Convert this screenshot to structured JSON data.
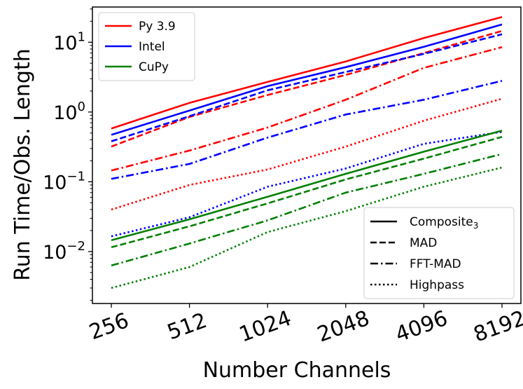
{
  "chart_data": {
    "type": "line",
    "title": "",
    "xlabel": "Number Channels",
    "ylabel": "Run Time/Obs. Length",
    "xscale": "log2",
    "yscale": "log10",
    "x": [
      256,
      512,
      1024,
      2048,
      4096,
      8192
    ],
    "x_tick_labels": [
      "256",
      "512",
      "1024",
      "2048",
      "4096",
      "8192"
    ],
    "y_tick_labels": [
      {
        "value": 0.01,
        "base": "10",
        "exp": "−2"
      },
      {
        "value": 0.1,
        "base": "10",
        "exp": "−1"
      },
      {
        "value": 1,
        "base": "10",
        "exp": "0"
      },
      {
        "value": 10,
        "base": "10",
        "exp": "1"
      }
    ],
    "ylim": [
      0.0018,
      32
    ],
    "implementations": [
      {
        "name": "Py 3.9",
        "color": "#ff0000"
      },
      {
        "name": "Intel",
        "color": "#0000ff"
      },
      {
        "name": "CuPy",
        "color": "#008000"
      }
    ],
    "methods": [
      {
        "name": "Composite",
        "subscript": "3",
        "dash": "solid"
      },
      {
        "name": "MAD",
        "subscript": "",
        "dash": "dashed"
      },
      {
        "name": "FFT-MAD",
        "subscript": "",
        "dash": "dashdot"
      },
      {
        "name": "Highpass",
        "subscript": "",
        "dash": "dotted"
      }
    ],
    "legend_implementations_position": "upper-left",
    "legend_methods_position": "lower-right",
    "series": [
      {
        "impl": "Py 3.9",
        "method": "Composite",
        "values": [
          0.58,
          1.35,
          2.7,
          5.3,
          11.5,
          23
        ]
      },
      {
        "impl": "Py 3.9",
        "method": "MAD",
        "values": [
          0.32,
          0.85,
          1.75,
          3.4,
          7.0,
          14.5
        ]
      },
      {
        "impl": "Py 3.9",
        "method": "FFT-MAD",
        "values": [
          0.145,
          0.28,
          0.6,
          1.5,
          4.3,
          8.5
        ]
      },
      {
        "impl": "Py 3.9",
        "method": "Highpass",
        "values": [
          0.04,
          0.09,
          0.15,
          0.32,
          0.75,
          1.55
        ]
      },
      {
        "impl": "Intel",
        "method": "Composite",
        "values": [
          0.47,
          1.05,
          2.35,
          4.4,
          8.6,
          18
        ]
      },
      {
        "impl": "Intel",
        "method": "MAD",
        "values": [
          0.38,
          0.87,
          2.05,
          3.75,
          6.8,
          13
        ]
      },
      {
        "impl": "Intel",
        "method": "FFT-MAD",
        "values": [
          0.11,
          0.18,
          0.43,
          0.92,
          1.5,
          2.8
        ]
      },
      {
        "impl": "Intel",
        "method": "Highpass",
        "values": [
          0.0165,
          0.031,
          0.085,
          0.155,
          0.35,
          0.52
        ]
      },
      {
        "impl": "CuPy",
        "method": "Composite",
        "values": [
          0.0145,
          0.029,
          0.061,
          0.13,
          0.27,
          0.54
        ]
      },
      {
        "impl": "CuPy",
        "method": "MAD",
        "values": [
          0.0115,
          0.023,
          0.049,
          0.108,
          0.215,
          0.44
        ]
      },
      {
        "impl": "CuPy",
        "method": "FFT-MAD",
        "values": [
          0.0063,
          0.013,
          0.028,
          0.07,
          0.13,
          0.25
        ]
      },
      {
        "impl": "CuPy",
        "method": "Highpass",
        "values": [
          0.003,
          0.006,
          0.019,
          0.038,
          0.085,
          0.16
        ]
      }
    ]
  }
}
